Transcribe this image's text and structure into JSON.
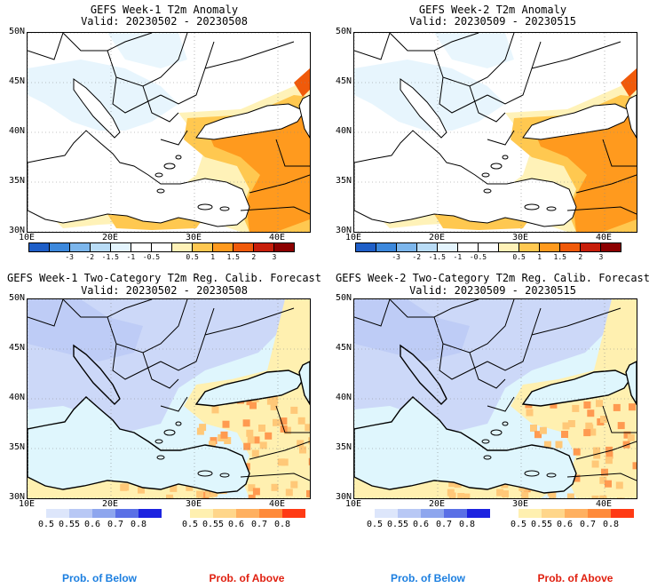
{
  "panels": [
    {
      "id": "p1",
      "line1": "GEFS Week-1 T2m Anomaly",
      "line2": "Valid: 20230502 - 20230508"
    },
    {
      "id": "p2",
      "line1": "GEFS Week-2 T2m Anomaly",
      "line2": "Valid: 20230509 - 20230515"
    },
    {
      "id": "p3",
      "line1": "GEFS Week-1 Two-Category T2m Reg. Calib. Forecast",
      "line2": "Valid: 20230502 - 20230508"
    },
    {
      "id": "p4",
      "line1": "GEFS Week-2 Two-Category T2m Reg. Calib. Forecast",
      "line2": "Valid: 20230509 - 20230515"
    }
  ],
  "axes": {
    "lat_labels": [
      "50N",
      "45N",
      "40N",
      "35N",
      "30N"
    ],
    "lon_labels": [
      "10E",
      "20E",
      "30E",
      "40E"
    ]
  },
  "anomaly_colorbar": {
    "colors": [
      "#1f5fc8",
      "#3c88dc",
      "#7cb6ec",
      "#b9dcf6",
      "#e4f4fd",
      "#ffffff",
      "#ffffff",
      "#fff2b8",
      "#ffc850",
      "#ff9a1e",
      "#f05a0a",
      "#c81e0a",
      "#8c0000"
    ],
    "labels": [
      "-3",
      "-2",
      "-1.5",
      "-1",
      "-0.5",
      "0.5",
      "1",
      "1.5",
      "2",
      "3"
    ]
  },
  "prob_below_bar": {
    "colors": [
      "#dde6fb",
      "#b8c8f5",
      "#8ea6ee",
      "#5a70e6",
      "#1c23e0"
    ],
    "labels": [
      "0.5",
      "0.55",
      "0.6",
      "0.7",
      "0.8"
    ]
  },
  "prob_above_bar": {
    "colors": [
      "#fff0b0",
      "#ffd68a",
      "#ffb060",
      "#ff8a3a",
      "#ff3a14"
    ],
    "labels": [
      "0.5",
      "0.55",
      "0.6",
      "0.7",
      "0.8"
    ]
  },
  "legend": {
    "below": "Prob. of Below",
    "above": "Prob. of Above",
    "below_color": "#1c7fe0",
    "above_color": "#e02010"
  },
  "map_colors": {
    "anomaly_cool": "#e4f4fd",
    "anomaly_warm1": "#fff2b8",
    "anomaly_warm2": "#ffc850",
    "anomaly_warm3": "#ff9a1e",
    "anomaly_warm4": "#f05a0a",
    "prob_below_base": "#ccd8f8",
    "prob_neutral": "#dff6fd",
    "prob_above_base": "#fff0b0",
    "prob_above_mid": "#ffc878",
    "prob_above_high": "#ff9a50"
  }
}
